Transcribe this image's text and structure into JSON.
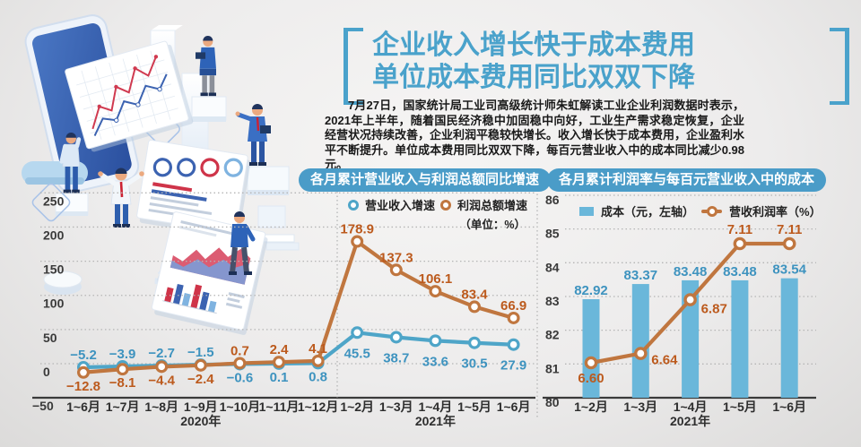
{
  "header": {
    "title_line1": "企业收入增长快于成本费用",
    "title_line2": "单位成本费用同比双双下降",
    "accent_color": "#4aa2cb"
  },
  "article": {
    "paragraph": "7月27日，国家统计局工业司高级统计师朱虹解读工业企业利润数据时表示，2021年上半年，随着国民经济稳中加固稳中向好，工业生产需求稳定恢复，企业经营状况持续改善，企业利润平稳较快增长。收入增长快于成本费用，企业盈利水平不断提升。单位成本费用同比双双下降，每百元营业收入中的成本同比减少0.98元。"
  },
  "colors": {
    "banner": "#4a9cc8",
    "bar": "#6ab7da",
    "line_blue": "#4ea5c8",
    "line_orange": "#c0763f",
    "label_blue": "#3e93bf",
    "label_orange": "#bc5a1d"
  },
  "chart_data": [
    {
      "id": "growth",
      "type": "line",
      "title": "各月累计营业收入与利润总额同比增速",
      "unit_note": "（单位：%）",
      "categories": [
        "1~6月",
        "1~7月",
        "1~8月",
        "1~9月",
        "1~10月",
        "1~11月",
        "1~12月",
        "1~2月",
        "1~3月",
        "1~4月",
        "1~5月",
        "1~6月"
      ],
      "era_labels": [
        {
          "label": "2020年",
          "at_category_index": 3
        },
        {
          "label": "2021年",
          "at_category_index": 9
        }
      ],
      "ylim": [
        -50,
        250
      ],
      "yticks": [
        250,
        200,
        150,
        100,
        50,
        0,
        -50
      ],
      "grid": "dotted",
      "legend_position": "top",
      "series": [
        {
          "name": "营业收入增速",
          "color": "#4ea5c8",
          "values": [
            -5.2,
            -3.9,
            -2.7,
            -1.5,
            -0.6,
            0.1,
            0.8,
            45.5,
            38.7,
            33.6,
            30.5,
            27.9
          ],
          "labels": [
            "−5.2",
            "−3.9",
            "−2.7",
            "−1.5",
            "−0.6",
            "0.1",
            "0.8",
            "45.5",
            "38.7",
            "33.6",
            "30.5",
            "27.9"
          ]
        },
        {
          "name": "利润总额增速",
          "color": "#c0763f",
          "values": [
            -12.8,
            -8.1,
            -4.4,
            -2.4,
            0.7,
            2.4,
            4.1,
            178.9,
            137.3,
            106.1,
            83.4,
            66.9
          ],
          "labels": [
            "−12.8",
            "−8.1",
            "−4.4",
            "−2.4",
            "0.7",
            "2.4",
            "4.1",
            "178.9",
            "137.3",
            "106.1",
            "83.4",
            "66.9"
          ]
        }
      ]
    },
    {
      "id": "cost",
      "type": "bar+line",
      "title": "各月累计利润率与每百元营业收入中的成本",
      "categories": [
        "1~2月",
        "1~3月",
        "1~4月",
        "1~5月",
        "1~6月"
      ],
      "era_labels": [
        {
          "label": "2021年",
          "at_category_index": 2
        }
      ],
      "left_axis": {
        "ylim": [
          80,
          86
        ],
        "yticks": [
          86,
          85,
          84,
          83,
          82,
          81,
          80
        ]
      },
      "grid": "dotted",
      "legend_position": "top",
      "series": [
        {
          "name": "成本（元，左轴）",
          "type": "bar",
          "color": "#6ab7da",
          "values": [
            82.92,
            83.37,
            83.48,
            83.48,
            83.54
          ],
          "labels": [
            "82.92",
            "83.37",
            "83.48",
            "83.48",
            "83.54"
          ]
        },
        {
          "name": "营收利润率（%）",
          "type": "line",
          "color": "#c0763f",
          "values": [
            6.6,
            6.64,
            6.87,
            7.11,
            7.11
          ],
          "labels": [
            "6.60",
            "6.64",
            "6.87",
            "7.11",
            "7.11"
          ]
        }
      ]
    }
  ]
}
